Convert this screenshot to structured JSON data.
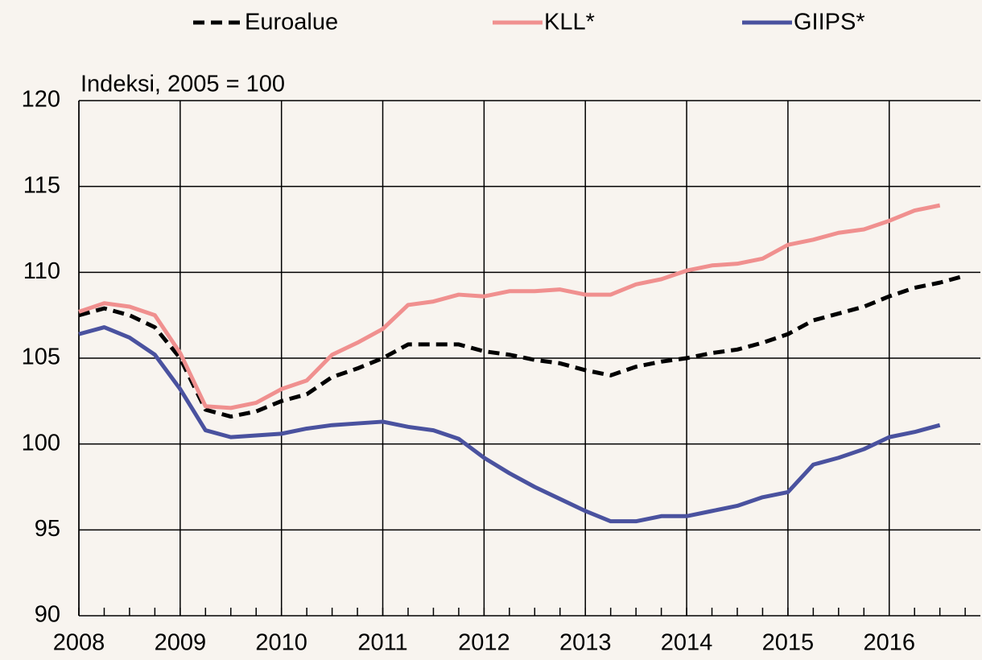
{
  "chart_data": {
    "type": "line",
    "subtitle": "Indeksi, 2005 = 100",
    "x": [
      2008,
      2008.25,
      2008.5,
      2008.75,
      2009,
      2009.25,
      2009.5,
      2009.75,
      2010,
      2010.25,
      2010.5,
      2010.75,
      2011,
      2011.25,
      2011.5,
      2011.75,
      2012,
      2012.25,
      2012.5,
      2012.75,
      2013,
      2013.25,
      2013.5,
      2013.75,
      2014,
      2014.25,
      2014.5,
      2014.75,
      2015,
      2015.25,
      2015.5,
      2015.75,
      2016,
      2016.25,
      2016.5,
      2016.75
    ],
    "series": [
      {
        "name": "Euroalue",
        "color": "#000000",
        "dash": true,
        "values": [
          107.5,
          107.9,
          107.5,
          106.8,
          105.0,
          102.0,
          101.6,
          101.9,
          102.5,
          102.9,
          103.9,
          104.4,
          105.0,
          105.8,
          105.8,
          105.8,
          105.4,
          105.2,
          104.9,
          104.7,
          104.3,
          104.0,
          104.5,
          104.8,
          105.0,
          105.3,
          105.5,
          105.9,
          106.4,
          107.2,
          107.6,
          108.0,
          108.6,
          109.1,
          109.4,
          109.8
        ]
      },
      {
        "name": "KLL*",
        "color": "#f0908f",
        "dash": false,
        "values": [
          107.7,
          108.2,
          108.0,
          107.5,
          105.3,
          102.2,
          102.1,
          102.4,
          103.2,
          103.7,
          105.2,
          105.9,
          106.7,
          108.1,
          108.3,
          108.7,
          108.6,
          108.9,
          108.9,
          109.0,
          108.7,
          108.7,
          109.3,
          109.6,
          110.1,
          110.4,
          110.5,
          110.8,
          111.6,
          111.9,
          112.3,
          112.5,
          113.0,
          113.6,
          113.9,
          null
        ]
      },
      {
        "name": "GIIPS*",
        "color": "#4a529f",
        "dash": false,
        "values": [
          106.4,
          106.8,
          106.2,
          105.2,
          103.2,
          100.8,
          100.4,
          100.5,
          100.6,
          100.9,
          101.1,
          101.2,
          101.3,
          101.0,
          100.8,
          100.3,
          99.2,
          98.3,
          97.5,
          96.8,
          96.1,
          95.5,
          95.5,
          95.8,
          95.8,
          96.1,
          96.4,
          96.9,
          97.2,
          98.8,
          99.2,
          99.7,
          100.4,
          100.7,
          101.1,
          null
        ]
      }
    ],
    "xlim": [
      2008,
      2016.9
    ],
    "xticks": [
      2008,
      2009,
      2010,
      2011,
      2012,
      2013,
      2014,
      2015,
      2016
    ],
    "ylim": [
      90,
      120
    ],
    "yticks": [
      90,
      95,
      100,
      105,
      110,
      115,
      120
    ],
    "grid": true,
    "legend": "top"
  }
}
